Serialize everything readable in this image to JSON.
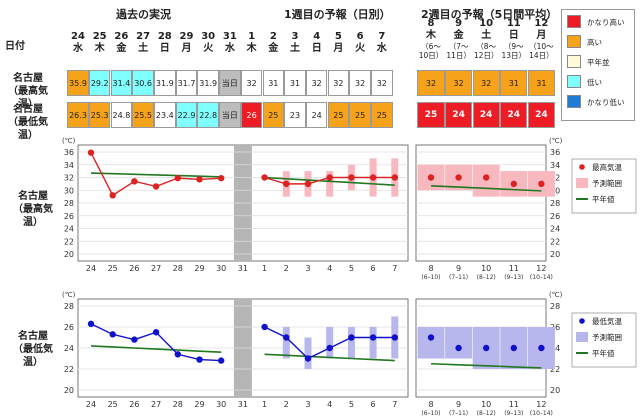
{
  "headers": {
    "past": "過去の実況",
    "week1": "1週目の予報（日別）",
    "week2": "2週目の予報（5日間平均）",
    "date_label": "日付"
  },
  "rows": {
    "max_label_1": "名古屋",
    "max_label_2": "（最高気温）",
    "min_label_1": "名古屋",
    "min_label_2": "（最低気温）"
  },
  "days": [
    {
      "d": "24",
      "w": "水"
    },
    {
      "d": "25",
      "w": "木"
    },
    {
      "d": "26",
      "w": "金"
    },
    {
      "d": "27",
      "w": "土"
    },
    {
      "d": "28",
      "w": "日"
    },
    {
      "d": "29",
      "w": "月"
    },
    {
      "d": "30",
      "w": "火"
    },
    {
      "d": "31",
      "w": "水"
    },
    {
      "d": "1",
      "w": "木"
    },
    {
      "d": "2",
      "w": "金"
    },
    {
      "d": "3",
      "w": "土"
    },
    {
      "d": "4",
      "w": "日"
    },
    {
      "d": "5",
      "w": "月"
    },
    {
      "d": "6",
      "w": "火"
    },
    {
      "d": "7",
      "w": "水"
    }
  ],
  "week2_days": [
    {
      "d": "8",
      "w": "木",
      "r1": "（6～",
      "r2": "10日）"
    },
    {
      "d": "9",
      "w": "金",
      "r1": "（7～",
      "r2": "11日）"
    },
    {
      "d": "10",
      "w": "土",
      "r1": "（8～",
      "r2": "12日）"
    },
    {
      "d": "11",
      "w": "日",
      "r1": "（9～",
      "r2": "13日）"
    },
    {
      "d": "12",
      "w": "月",
      "r1": "（10～",
      "r2": "14日）"
    }
  ],
  "colors": {
    "very_high": "#ee1c25",
    "high": "#f7a21b",
    "normal": "#fffbd8",
    "low": "#80ffff",
    "very_low": "#1e7bd6",
    "white": "#ffffff",
    "gray": "#bdbdbd",
    "line_max": "#dd2222",
    "line_min": "#1111cc",
    "normal_line": "#227722",
    "range_max": "#f7b8bf",
    "range_min": "#b7b7ee"
  },
  "table": {
    "max_cells": [
      {
        "v": "35.9",
        "c": "high"
      },
      {
        "v": "29.2",
        "c": "low"
      },
      {
        "v": "31.4",
        "c": "low"
      },
      {
        "v": "30.6",
        "c": "low"
      },
      {
        "v": "31.9",
        "c": "white"
      },
      {
        "v": "31.7",
        "c": "white"
      },
      {
        "v": "31.9",
        "c": "white"
      },
      {
        "v": "当日",
        "c": "gray"
      },
      {
        "v": "32",
        "c": "white"
      },
      {
        "v": "31",
        "c": "white"
      },
      {
        "v": "31",
        "c": "white"
      },
      {
        "v": "32",
        "c": "white"
      },
      {
        "v": "32",
        "c": "white"
      },
      {
        "v": "32",
        "c": "white"
      },
      {
        "v": "32",
        "c": "white"
      }
    ],
    "min_cells": [
      {
        "v": "26.3",
        "c": "high"
      },
      {
        "v": "25.3",
        "c": "high"
      },
      {
        "v": "24.8",
        "c": "white"
      },
      {
        "v": "25.5",
        "c": "high"
      },
      {
        "v": "23.4",
        "c": "white"
      },
      {
        "v": "22.9",
        "c": "low"
      },
      {
        "v": "22.8",
        "c": "low"
      },
      {
        "v": "当日",
        "c": "gray"
      },
      {
        "v": "26",
        "c": "very_high"
      },
      {
        "v": "25",
        "c": "high"
      },
      {
        "v": "23",
        "c": "white"
      },
      {
        "v": "24",
        "c": "white"
      },
      {
        "v": "25",
        "c": "high"
      },
      {
        "v": "25",
        "c": "high"
      },
      {
        "v": "25",
        "c": "high"
      }
    ],
    "week2_max": [
      {
        "v": "32",
        "c": "high"
      },
      {
        "v": "32",
        "c": "high"
      },
      {
        "v": "32",
        "c": "high"
      },
      {
        "v": "31",
        "c": "high"
      },
      {
        "v": "31",
        "c": "high"
      }
    ],
    "week2_min": [
      {
        "v": "25",
        "c": "very_high"
      },
      {
        "v": "24",
        "c": "very_high"
      },
      {
        "v": "24",
        "c": "very_high"
      },
      {
        "v": "24",
        "c": "very_high"
      },
      {
        "v": "24",
        "c": "very_high"
      }
    ]
  },
  "legend_top": [
    {
      "label": "かなり高い",
      "c": "very_high"
    },
    {
      "label": "高い",
      "c": "high"
    },
    {
      "label": "平年並",
      "c": "normal"
    },
    {
      "label": "低い",
      "c": "low"
    },
    {
      "label": "かなり低い",
      "c": "very_low"
    }
  ],
  "chart_labels": {
    "max_1": "名古屋",
    "max_2": "（最高気温）",
    "min_1": "名古屋",
    "min_2": "（最低気温）",
    "unit": "(℃)",
    "legend_max_point": "最高気温",
    "legend_min_point": "最低気温",
    "legend_range": "予測範囲",
    "legend_normal": "平年値"
  },
  "chart_data": [
    {
      "type": "line",
      "name": "名古屋（最高気温）",
      "ylim": [
        20,
        36
      ],
      "yticks": [
        20,
        22,
        24,
        26,
        28,
        30,
        32,
        34,
        36
      ],
      "x_labels": [
        "24",
        "25",
        "26",
        "27",
        "28",
        "29",
        "30",
        "31",
        "1",
        "2",
        "3",
        "4",
        "5",
        "6",
        "7"
      ],
      "x2_labels": [
        "8",
        "9",
        "10",
        "11",
        "12"
      ],
      "x2_sublabels": [
        "(6–10)",
        "(7–11)",
        "(8–12)",
        "(9–13)",
        "(10–14)"
      ],
      "observed": [
        35.9,
        29.2,
        31.4,
        30.6,
        31.9,
        31.7,
        31.9
      ],
      "forecast": [
        32,
        31,
        31,
        32,
        32,
        32,
        32
      ],
      "forecast_range": [
        [
          null,
          null
        ],
        [
          29,
          33
        ],
        [
          29,
          33
        ],
        [
          29,
          33
        ],
        [
          30,
          34
        ],
        [
          29,
          35
        ],
        [
          29,
          35
        ]
      ],
      "normal_past": [
        32.7,
        32.6,
        32.5,
        32.4,
        32.3,
        32.2,
        32.1
      ],
      "normal_week1": [
        32.0,
        31.8,
        31.6,
        31.4,
        31.2,
        31.0,
        30.8
      ],
      "week2": [
        32,
        32,
        32,
        31,
        31
      ],
      "week2_range": [
        [
          30,
          34
        ],
        [
          30,
          34
        ],
        [
          29,
          34
        ],
        [
          29,
          33
        ],
        [
          29,
          33
        ]
      ],
      "normal_week2": [
        30.7,
        30.5,
        30.3,
        30.1,
        29.9
      ]
    },
    {
      "type": "line",
      "name": "名古屋（最低気温）",
      "ylim": [
        20,
        28
      ],
      "yticks": [
        20,
        22,
        24,
        26,
        28
      ],
      "x_labels": [
        "24",
        "25",
        "26",
        "27",
        "28",
        "29",
        "30",
        "31",
        "1",
        "2",
        "3",
        "4",
        "5",
        "6",
        "7"
      ],
      "x2_labels": [
        "8",
        "9",
        "10",
        "11",
        "12"
      ],
      "x2_sublabels": [
        "(6–10)",
        "(7–11)",
        "(8–12)",
        "(9–13)",
        "(10–14)"
      ],
      "observed": [
        26.3,
        25.3,
        24.8,
        25.5,
        23.4,
        22.9,
        22.8
      ],
      "forecast": [
        26,
        25,
        23,
        24,
        25,
        25,
        25
      ],
      "forecast_range": [
        [
          null,
          null
        ],
        [
          23,
          26
        ],
        [
          22,
          25
        ],
        [
          23,
          26
        ],
        [
          23,
          26
        ],
        [
          23,
          26
        ],
        [
          23,
          27
        ]
      ],
      "normal_past": [
        24.2,
        24.1,
        24.0,
        23.9,
        23.8,
        23.7,
        23.6
      ],
      "normal_week1": [
        23.4,
        23.3,
        23.2,
        23.1,
        23.0,
        22.9,
        22.8
      ],
      "week2": [
        25,
        24,
        24,
        24,
        24
      ],
      "week2_range": [
        [
          23,
          26
        ],
        [
          23,
          26
        ],
        [
          22,
          26
        ],
        [
          22,
          26
        ],
        [
          22,
          26
        ]
      ],
      "normal_week2": [
        22.5,
        22.4,
        22.3,
        22.2,
        22.1
      ]
    }
  ]
}
